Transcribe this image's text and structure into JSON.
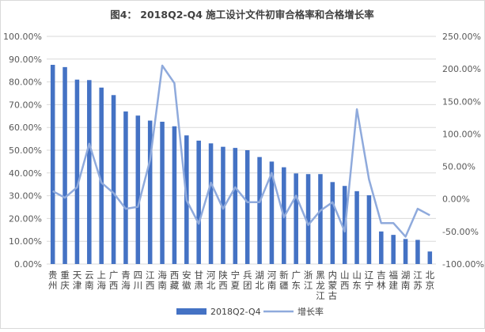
{
  "chart_data": {
    "type": "bar",
    "title": "图4：   2018Q2-Q4 施工设计文件初审合格率和合格增长率",
    "categories": [
      "贵州",
      "重庆",
      "天津",
      "云南",
      "上海",
      "广西",
      "青海",
      "四川",
      "江西",
      "海南",
      "西藏",
      "安徽",
      "甘肃",
      "河北",
      "陕西",
      "宁夏",
      "兵团",
      "湖北",
      "河南",
      "新疆",
      "广东",
      "浙江",
      "黑龙江",
      "内蒙古",
      "山西",
      "山东",
      "辽宁",
      "吉林",
      "福建",
      "湖南",
      "江苏",
      "北京"
    ],
    "series": [
      {
        "name": "2018Q2-Q4",
        "type": "bar",
        "axis": "left",
        "color": "#4472c4",
        "values": [
          87.5,
          86.5,
          81,
          80.8,
          77.5,
          74.2,
          67,
          65.2,
          63,
          62.5,
          60.5,
          56.5,
          54.2,
          53,
          51.5,
          51,
          50,
          47,
          45,
          42.5,
          39.8,
          39.5,
          39.5,
          36,
          34.3,
          32,
          30.2,
          14.3,
          12.8,
          11,
          10.6,
          5.5
        ]
      },
      {
        "name": "增长率",
        "type": "line",
        "axis": "right",
        "color": "#8faadc",
        "values": [
          12,
          2,
          18,
          85,
          25,
          9,
          -15,
          -12,
          60,
          205,
          178,
          -2,
          -38,
          25,
          -15,
          18,
          -5,
          -5,
          40,
          -28,
          5,
          -40,
          -18,
          -5,
          -50,
          138,
          30,
          -37,
          -37,
          -58,
          -15,
          -25
        ]
      }
    ],
    "y_left": {
      "ylim": [
        0,
        100
      ],
      "ticks": [
        "0.00%",
        "10.00%",
        "20.00%",
        "30.00%",
        "40.00%",
        "50.00%",
        "60.00%",
        "70.00%",
        "80.00%",
        "90.00%",
        "100.00%"
      ]
    },
    "y_right": {
      "ylim": [
        -100,
        250
      ],
      "ticks": [
        "-100.00%",
        "-50.00%",
        "0.00%",
        "50.00%",
        "100.00%",
        "150.00%",
        "200.00%",
        "250.00%"
      ]
    },
    "grid": true,
    "legend": "bottom"
  }
}
